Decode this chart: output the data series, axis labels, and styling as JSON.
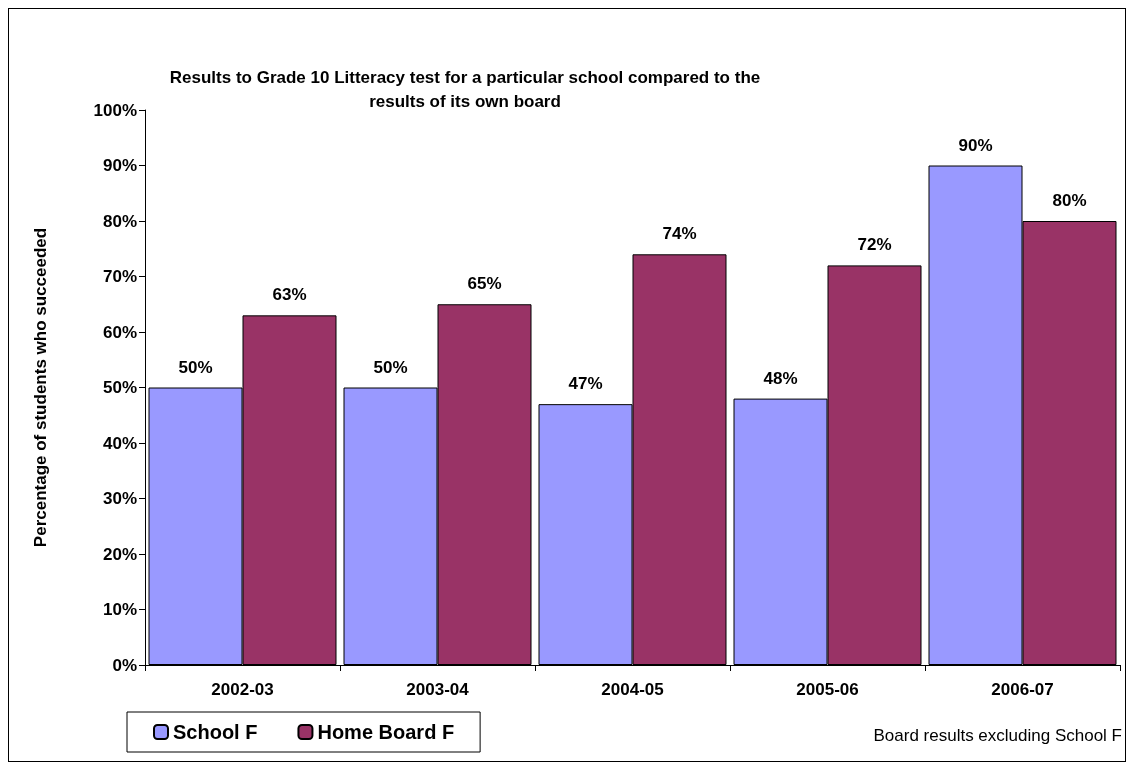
{
  "chart_data": {
    "type": "bar",
    "title": "Results to Grade 10 Litteracy test for a particular school compared to the\nresults of its own board",
    "ylabel": "Percentage of students who succeeded",
    "categories": [
      "2002-03",
      "2003-04",
      "2004-05",
      "2005-06",
      "2006-07"
    ],
    "series": [
      {
        "name": "School F",
        "color": "#9999ff",
        "values": [
          50,
          50,
          47,
          48,
          90
        ],
        "value_labels": [
          "50%",
          "50%",
          "47%",
          "48%",
          "90%"
        ]
      },
      {
        "name": "Home Board F",
        "color": "#993366",
        "values": [
          63,
          65,
          74,
          72,
          80
        ],
        "value_labels": [
          "63%",
          "65%",
          "74%",
          "72%",
          "80%"
        ]
      }
    ],
    "ylim": [
      0,
      100
    ],
    "yticks": [
      {
        "value": 0,
        "label": "0%"
      },
      {
        "value": 10,
        "label": "10%"
      },
      {
        "value": 20,
        "label": "20%"
      },
      {
        "value": 30,
        "label": "30%"
      },
      {
        "value": 40,
        "label": "40%"
      },
      {
        "value": 50,
        "label": "50%"
      },
      {
        "value": 60,
        "label": "60%"
      },
      {
        "value": 70,
        "label": "70%"
      },
      {
        "value": 80,
        "label": "80%"
      },
      {
        "value": 90,
        "label": "90%"
      },
      {
        "value": 100,
        "label": "100%"
      }
    ],
    "grid": false,
    "legend": "bottom left",
    "annotations": [
      "Board results excluding School F"
    ]
  }
}
